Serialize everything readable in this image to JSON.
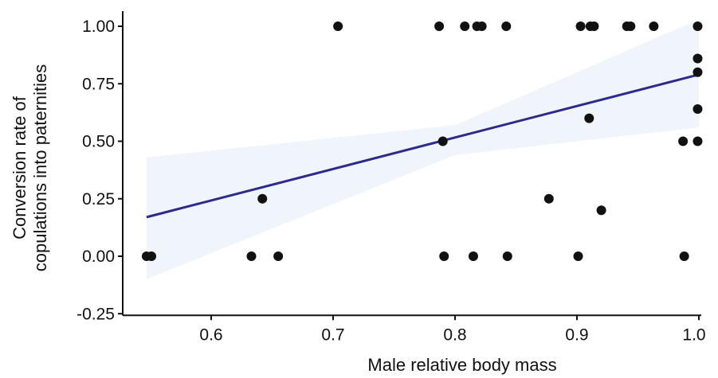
{
  "chart_data": {
    "type": "scatter",
    "title": "",
    "xlabel": "Male relative body mass",
    "ylabel_lines": [
      "Conversion rate of",
      "copulations into paternities"
    ],
    "xlim": [
      0.54,
      1.0
    ],
    "ylim": [
      -0.25,
      1.0
    ],
    "xticks": [
      0.6,
      0.7,
      0.8,
      0.9,
      1.0
    ],
    "xtick_labels": [
      "0.6",
      "0.7",
      "0.8",
      "0.9",
      "1.0"
    ],
    "yticks": [
      -0.25,
      0.0,
      0.25,
      0.5,
      0.75,
      1.0
    ],
    "ytick_labels": [
      "-0.25",
      "0.00",
      "0.25",
      "0.50",
      "0.75",
      "1.00"
    ],
    "grid": false,
    "legend": "none",
    "colors": {
      "points": "#111111",
      "trend_line": "#2e2a8c",
      "confidence_band": "#e6eef8",
      "axis": "#111111"
    },
    "points": [
      {
        "x": 0.547,
        "y": 0.0
      },
      {
        "x": 0.551,
        "y": 0.0
      },
      {
        "x": 0.633,
        "y": 0.0
      },
      {
        "x": 0.642,
        "y": 0.25
      },
      {
        "x": 0.655,
        "y": 0.0
      },
      {
        "x": 0.704,
        "y": 1.0
      },
      {
        "x": 0.787,
        "y": 1.0
      },
      {
        "x": 0.79,
        "y": 0.5
      },
      {
        "x": 0.791,
        "y": 0.0
      },
      {
        "x": 0.808,
        "y": 1.0
      },
      {
        "x": 0.815,
        "y": 0.0
      },
      {
        "x": 0.818,
        "y": 1.0
      },
      {
        "x": 0.822,
        "y": 1.0
      },
      {
        "x": 0.842,
        "y": 1.0
      },
      {
        "x": 0.843,
        "y": 0.0
      },
      {
        "x": 0.877,
        "y": 0.25
      },
      {
        "x": 0.901,
        "y": 0.0
      },
      {
        "x": 0.903,
        "y": 1.0
      },
      {
        "x": 0.91,
        "y": 0.6
      },
      {
        "x": 0.911,
        "y": 1.0
      },
      {
        "x": 0.914,
        "y": 1.0
      },
      {
        "x": 0.92,
        "y": 0.2
      },
      {
        "x": 0.941,
        "y": 1.0
      },
      {
        "x": 0.944,
        "y": 1.0
      },
      {
        "x": 0.963,
        "y": 1.0
      },
      {
        "x": 0.987,
        "y": 0.5
      },
      {
        "x": 0.988,
        "y": 0.0
      },
      {
        "x": 0.999,
        "y": 1.0
      },
      {
        "x": 0.999,
        "y": 0.86
      },
      {
        "x": 0.999,
        "y": 0.8
      },
      {
        "x": 0.999,
        "y": 0.64
      },
      {
        "x": 0.999,
        "y": 0.5
      }
    ],
    "trend_line": {
      "x": [
        0.547,
        1.0
      ],
      "y": [
        0.17,
        0.79
      ]
    },
    "confidence_band": {
      "x": [
        0.547,
        0.8,
        1.0
      ],
      "upper": [
        0.43,
        0.57,
        1.03
      ],
      "lower": [
        -0.1,
        0.44,
        0.56
      ]
    }
  }
}
